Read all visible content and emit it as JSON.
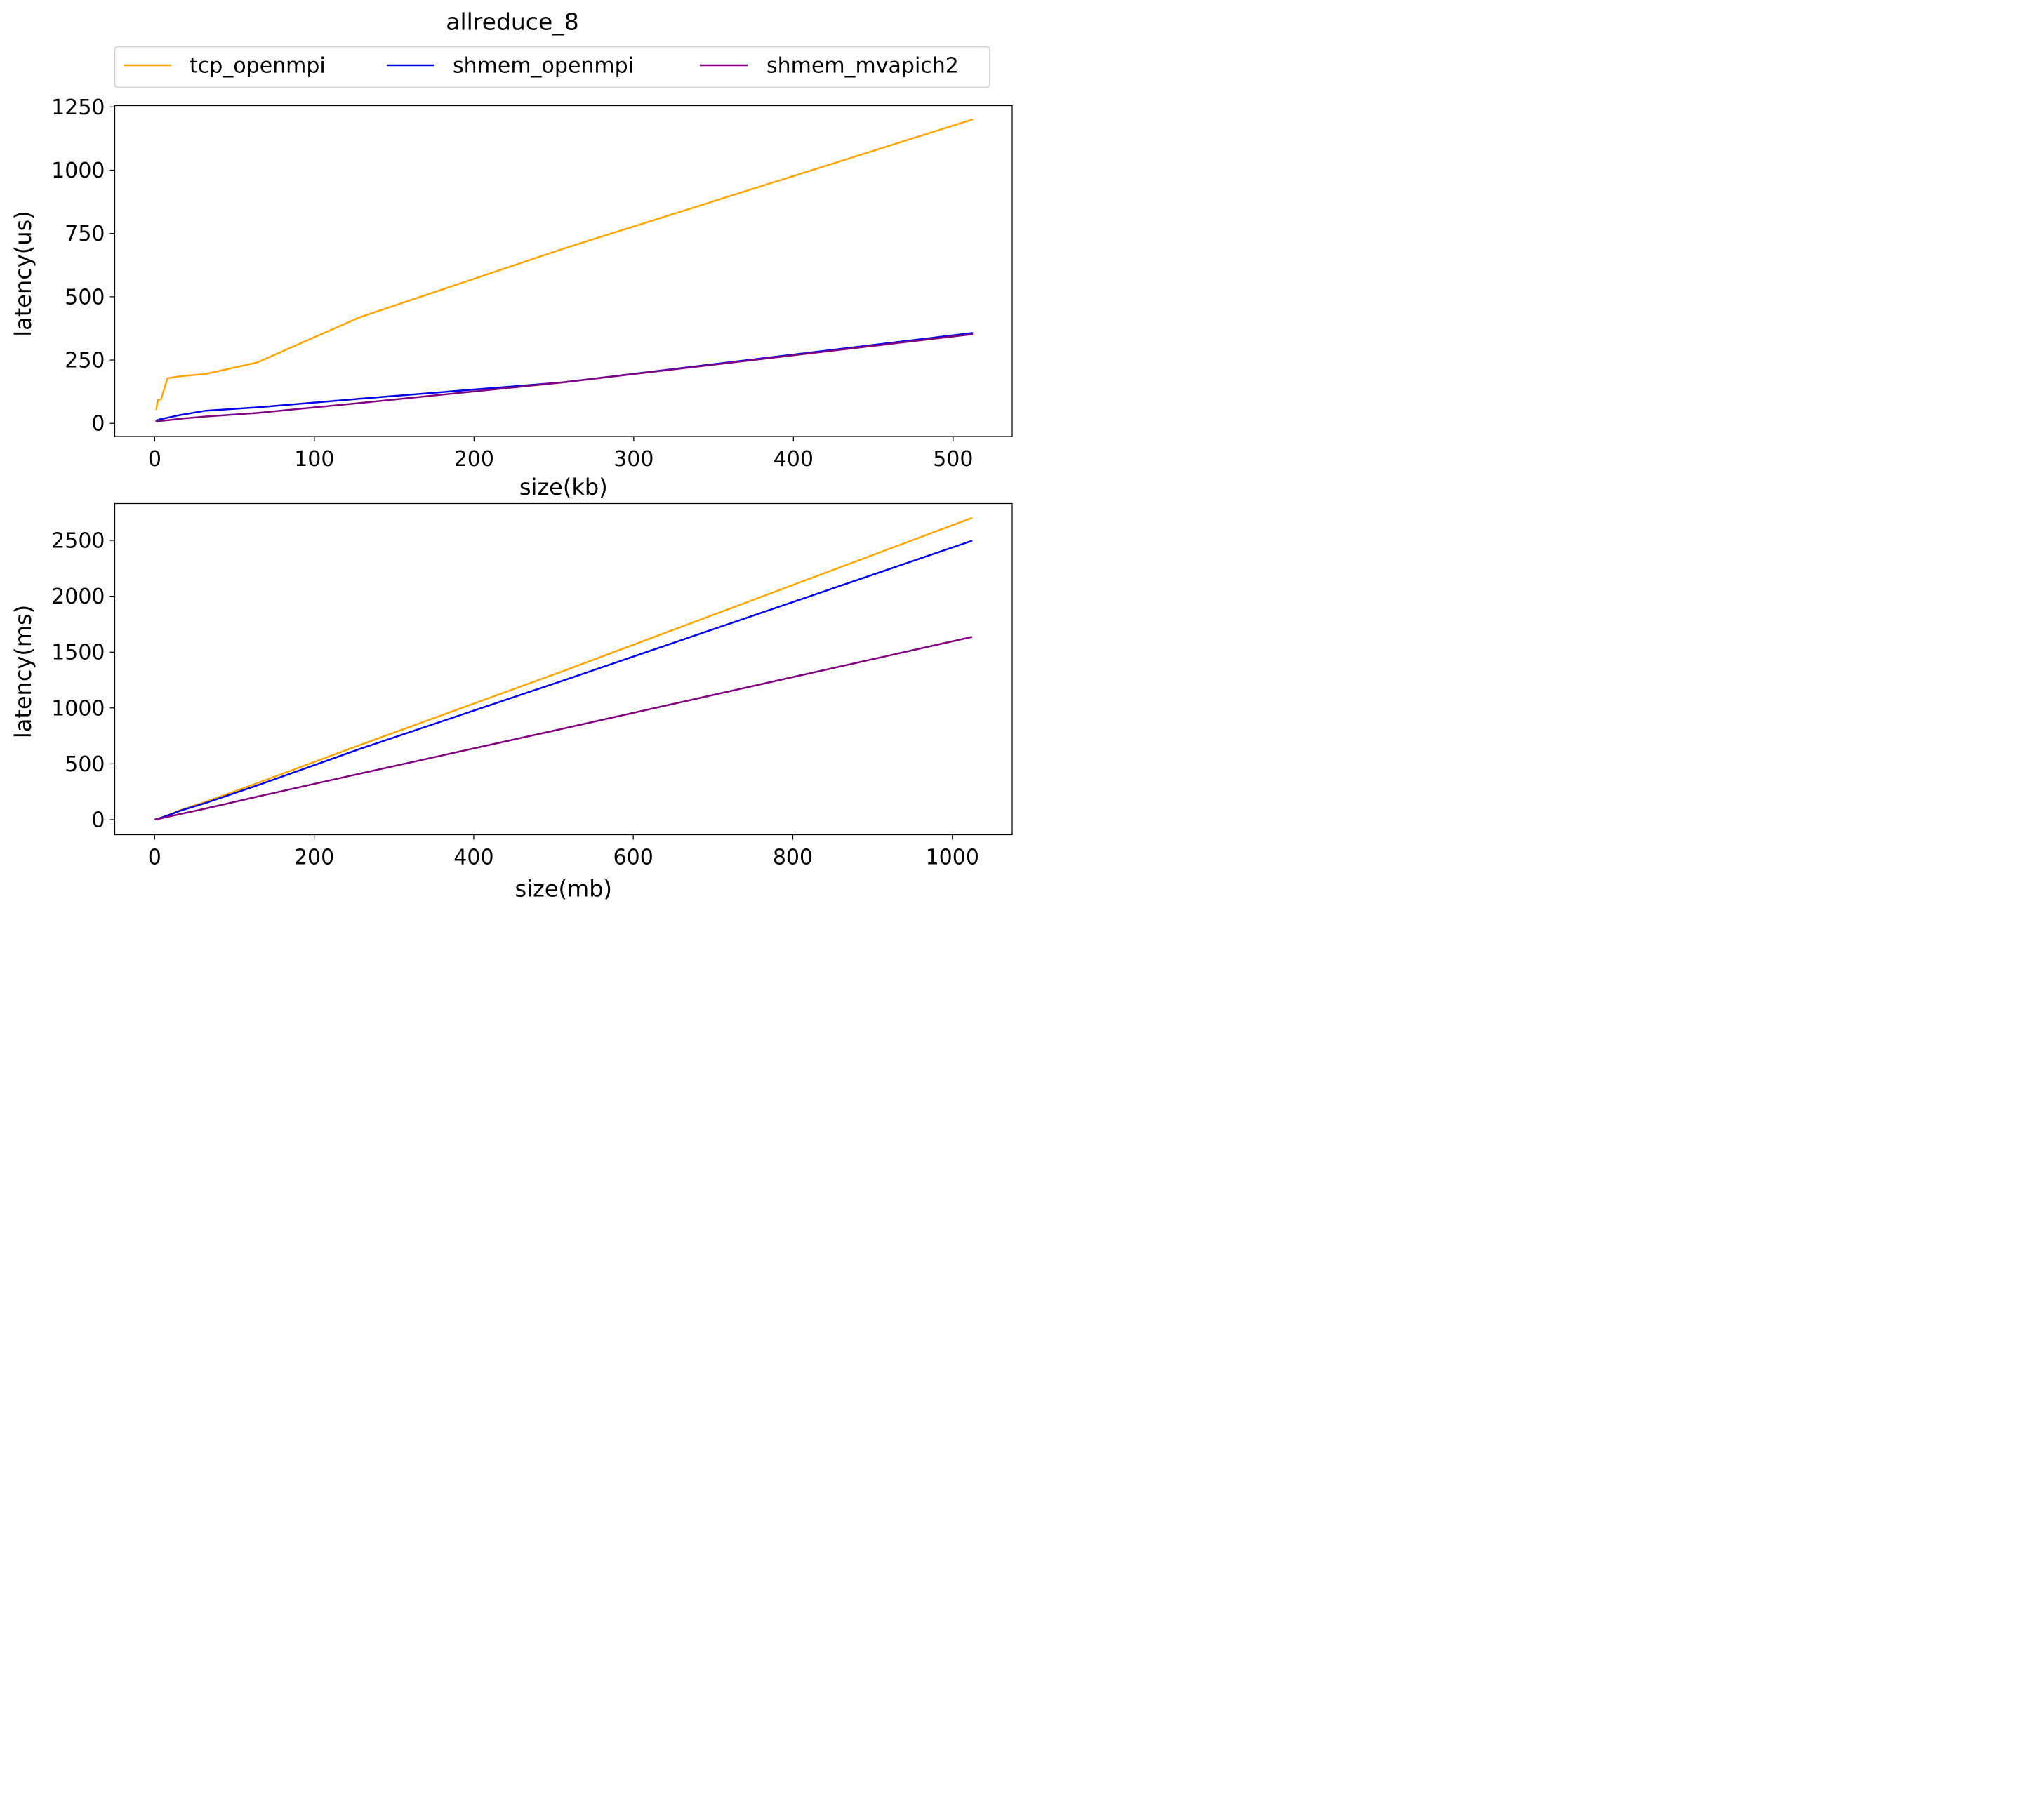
{
  "title": "allreduce_8",
  "legend": {
    "placement": "top-center",
    "entries": [
      {
        "label": "tcp_openmpi",
        "color": "#FFA500"
      },
      {
        "label": "shmem_openmpi",
        "color": "#0000EE"
      },
      {
        "label": "shmem_mvapich2",
        "color": "#800080"
      }
    ]
  },
  "chart_data": [
    {
      "type": "line",
      "xlabel": "size(kb)",
      "ylabel": "latency(us)",
      "xlim": [
        -25,
        537
      ],
      "ylim": [
        -52,
        1255
      ],
      "xticks": [
        0,
        100,
        200,
        300,
        400,
        500
      ],
      "yticks": [
        0,
        250,
        500,
        750,
        1000,
        1250
      ],
      "grid": false,
      "series": [
        {
          "name": "tcp_openmpi",
          "color": "#FFA500",
          "x": [
            1,
            2,
            4,
            8,
            16,
            32,
            64,
            128,
            256,
            512
          ],
          "y": [
            55,
            92,
            95,
            178,
            186,
            195,
            240,
            418,
            690,
            1200
          ]
        },
        {
          "name": "shmem_openmpi",
          "color": "#0000EE",
          "x": [
            1,
            2,
            4,
            8,
            16,
            32,
            64,
            128,
            256,
            512
          ],
          "y": [
            10,
            13,
            17,
            22,
            33,
            50,
            63,
            97,
            162,
            357
          ]
        },
        {
          "name": "shmem_mvapich2",
          "color": "#800080",
          "x": [
            1,
            2,
            4,
            8,
            16,
            32,
            64,
            128,
            256,
            512
          ],
          "y": [
            8,
            9,
            10,
            12,
            18,
            27,
            41,
            80,
            162,
            352
          ]
        }
      ]
    },
    {
      "type": "line",
      "xlabel": "size(mb)",
      "ylabel": "latency(ms)",
      "xlim": [
        -50,
        1075
      ],
      "ylim": [
        -135,
        2830
      ],
      "xticks": [
        0,
        200,
        400,
        600,
        800,
        1000
      ],
      "yticks": [
        0,
        500,
        1000,
        1500,
        2000,
        2500
      ],
      "grid": false,
      "series": [
        {
          "name": "tcp_openmpi",
          "color": "#FFA500",
          "x": [
            1,
            2,
            4,
            8,
            16,
            32,
            64,
            128,
            256,
            512,
            1024
          ],
          "y": [
            3,
            5,
            10,
            18,
            38,
            85,
            160,
            325,
            665,
            1330,
            2700
          ]
        },
        {
          "name": "shmem_openmpi",
          "color": "#0000EE",
          "x": [
            1,
            2,
            4,
            8,
            16,
            32,
            64,
            128,
            256,
            512,
            1024
          ],
          "y": [
            3,
            5,
            9,
            17,
            36,
            80,
            150,
            305,
            630,
            1245,
            2495
          ]
        },
        {
          "name": "shmem_mvapich2",
          "color": "#800080",
          "x": [
            1,
            2,
            4,
            8,
            16,
            32,
            64,
            128,
            256,
            512,
            1024
          ],
          "y": [
            2,
            3,
            6,
            12,
            25,
            50,
            100,
            205,
            410,
            815,
            1635
          ]
        }
      ]
    }
  ]
}
